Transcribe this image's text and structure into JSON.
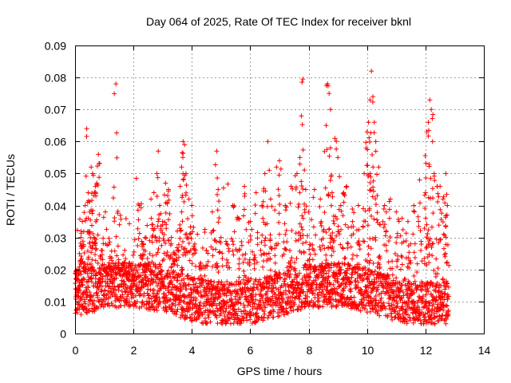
{
  "chart_data": {
    "type": "scatter",
    "title": "Day 064 of 2025, Rate Of TEC Index for receiver bknl",
    "xlabel": "GPS time / hours",
    "ylabel": "ROTI / TECUs",
    "xlim": [
      0,
      14
    ],
    "ylim": [
      0,
      0.09
    ],
    "xticks": [
      0,
      2,
      4,
      6,
      8,
      10,
      12,
      14
    ],
    "xtick_labels": [
      "0",
      "2",
      "4",
      "6",
      "8",
      "10",
      "12",
      "14"
    ],
    "yticks": [
      0,
      0.01,
      0.02,
      0.03,
      0.04,
      0.05,
      0.06,
      0.07,
      0.08,
      0.09
    ],
    "ytick_labels": [
      "0",
      "0.01",
      "0.02",
      "0.03",
      "0.04",
      "0.05",
      "0.06",
      "0.07",
      "0.08",
      "0.09"
    ],
    "grid": true,
    "marker": "+",
    "color": "#ff0000",
    "series": [
      {
        "name": "ROTI",
        "x_range": [
          0,
          12.8
        ],
        "typical_band": [
          0.008,
          0.02
        ],
        "points": [
          [
            0.05,
            0.012
          ],
          [
            0.1,
            0.018
          ],
          [
            0.15,
            0.025
          ],
          [
            0.2,
            0.03
          ],
          [
            0.25,
            0.035
          ],
          [
            0.3,
            0.022
          ],
          [
            0.35,
            0.04
          ],
          [
            0.4,
            0.064
          ],
          [
            0.45,
            0.044
          ],
          [
            0.5,
            0.038
          ],
          [
            0.55,
            0.052
          ],
          [
            0.6,
            0.05
          ],
          [
            0.65,
            0.03
          ],
          [
            0.7,
            0.046
          ],
          [
            0.75,
            0.047
          ],
          [
            0.8,
            0.056
          ],
          [
            0.9,
            0.026
          ],
          [
            1.0,
            0.02
          ],
          [
            1.1,
            0.018
          ],
          [
            1.2,
            0.024
          ],
          [
            1.3,
            0.016
          ],
          [
            1.4,
            0.078
          ],
          [
            1.5,
            0.022
          ],
          [
            1.6,
            0.02
          ],
          [
            1.7,
            0.026
          ],
          [
            1.8,
            0.017
          ],
          [
            2.0,
            0.015
          ],
          [
            2.2,
            0.04
          ],
          [
            2.3,
            0.028
          ],
          [
            2.4,
            0.03
          ],
          [
            2.5,
            0.022
          ],
          [
            2.6,
            0.042
          ],
          [
            2.7,
            0.044
          ],
          [
            2.8,
            0.05
          ],
          [
            2.85,
            0.057
          ],
          [
            2.9,
            0.04
          ],
          [
            3.0,
            0.035
          ],
          [
            3.1,
            0.047
          ],
          [
            3.2,
            0.045
          ],
          [
            3.3,
            0.03
          ],
          [
            3.4,
            0.025
          ],
          [
            3.5,
            0.032
          ],
          [
            3.6,
            0.046
          ],
          [
            3.65,
            0.052
          ],
          [
            3.7,
            0.06
          ],
          [
            3.75,
            0.059
          ],
          [
            3.8,
            0.05
          ],
          [
            3.9,
            0.042
          ],
          [
            4.0,
            0.04
          ],
          [
            4.1,
            0.028
          ],
          [
            4.3,
            0.022
          ],
          [
            4.5,
            0.026
          ],
          [
            4.7,
            0.038
          ],
          [
            4.85,
            0.057
          ],
          [
            4.9,
            0.045
          ],
          [
            5.0,
            0.03
          ],
          [
            5.2,
            0.028
          ],
          [
            5.4,
            0.04
          ],
          [
            5.6,
            0.036
          ],
          [
            5.8,
            0.046
          ],
          [
            6.0,
            0.035
          ],
          [
            6.2,
            0.044
          ],
          [
            6.4,
            0.04
          ],
          [
            6.5,
            0.05
          ],
          [
            6.6,
            0.06
          ],
          [
            6.7,
            0.042
          ],
          [
            6.9,
            0.052
          ],
          [
            7.0,
            0.054
          ],
          [
            7.2,
            0.04
          ],
          [
            7.4,
            0.046
          ],
          [
            7.6,
            0.05
          ],
          [
            7.7,
            0.055
          ],
          [
            7.75,
            0.068
          ],
          [
            7.8,
            0.0795
          ],
          [
            7.9,
            0.045
          ],
          [
            8.0,
            0.038
          ],
          [
            8.2,
            0.045
          ],
          [
            8.4,
            0.042
          ],
          [
            8.5,
            0.032
          ],
          [
            8.6,
            0.065
          ],
          [
            8.65,
            0.078
          ],
          [
            8.7,
            0.075
          ],
          [
            8.75,
            0.07
          ],
          [
            8.8,
            0.044
          ],
          [
            8.9,
            0.061
          ],
          [
            9.0,
            0.055
          ],
          [
            9.1,
            0.04
          ],
          [
            9.2,
            0.044
          ],
          [
            9.3,
            0.046
          ],
          [
            9.5,
            0.035
          ],
          [
            9.7,
            0.04
          ],
          [
            9.9,
            0.05
          ],
          [
            10.0,
            0.063
          ],
          [
            10.05,
            0.066
          ],
          [
            10.1,
            0.073
          ],
          [
            10.15,
            0.082
          ],
          [
            10.2,
            0.074
          ],
          [
            10.25,
            0.066
          ],
          [
            10.3,
            0.06
          ],
          [
            10.4,
            0.052
          ],
          [
            10.6,
            0.04
          ],
          [
            10.8,
            0.042
          ],
          [
            11.0,
            0.038
          ],
          [
            11.2,
            0.036
          ],
          [
            11.4,
            0.035
          ],
          [
            11.6,
            0.04
          ],
          [
            11.8,
            0.048
          ],
          [
            12.0,
            0.044
          ],
          [
            12.05,
            0.063
          ],
          [
            12.1,
            0.066
          ],
          [
            12.15,
            0.073
          ],
          [
            12.2,
            0.07
          ],
          [
            12.3,
            0.05
          ],
          [
            12.4,
            0.046
          ],
          [
            12.5,
            0.046
          ],
          [
            12.6,
            0.042
          ],
          [
            12.7,
            0.05
          ],
          [
            12.75,
            0.04
          ]
        ]
      }
    ]
  }
}
